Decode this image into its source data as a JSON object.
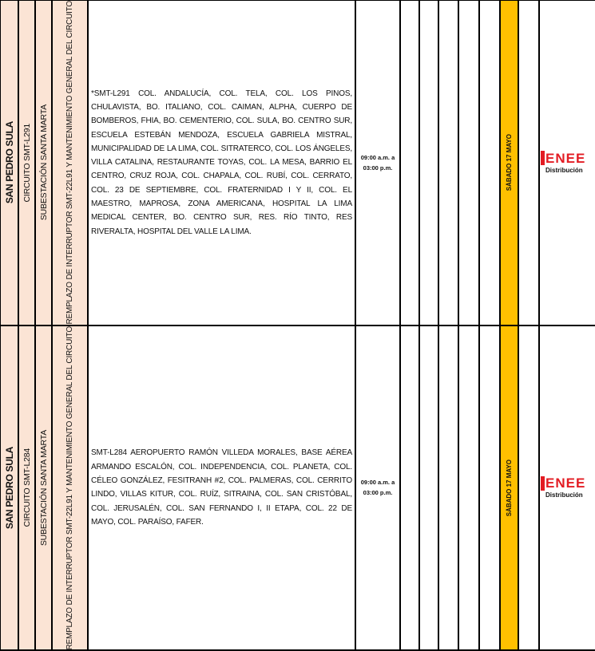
{
  "colors": {
    "location_bg": "#fbe4d5",
    "date_bg": "#ffc000",
    "logo_red": "#e31c23"
  },
  "rows": [
    {
      "city": "SAN PEDRO SULA",
      "circuit": "CIRCUITO SMT-L291",
      "substation": "SUBESTACIÓN SANTA MARTA",
      "task": "REMPLAZO DE INTERRUPTOR SMT-22L91 Y MANTENIMIENTO GENERAL DEL CIRCUITO",
      "areas": "*SMT-L291 COL. ANDALUCÍA, COL. TELA, COL. LOS PINOS, CHULAVISTA, BO. ITALIANO, COL. CAIMAN, ALPHA, CUERPO DE BOMBEROS, FHIA, BO. CEMENTERIO, COL. SULA, BO. CENTRO SUR, ESCUELA ESTEBÁN MENDOZA, ESCUELA GABRIELA MISTRAL, MUNICIPALIDAD DE LA LIMA, COL. SITRATERCO, COL. LOS ÁNGELES, VILLA CATALINA, RESTAURANTE TOYAS, COL. LA MESA, BARRIO EL CENTRO, CRUZ ROJA, COL. CHAPALA, COL. RUBÍ, COL. CERRATO, COL. 23 DE SEPTIEMBRE, COL. FRATERNIDAD I Y II, COL. EL MAESTRO, MAPROSA, ZONA AMERICANA, HOSPITAL LA LIMA MEDICAL CENTER, BO. CENTRO SUR, RES. RÍO TINTO, RES RIVERALTA, HOSPITAL DEL VALLE LA LIMA.",
      "time_start": "09:00 a.m. a",
      "time_end": "03:00 p.m.",
      "day": "SÁBADO 17 MAYO",
      "logo": {
        "brand": "ENEE",
        "sub": "Distribución"
      }
    },
    {
      "city": "SAN PEDRO SULA",
      "circuit": "CIRCUITO SMT-L284",
      "substation": "SUBESTACIÓN SANTA MARTA",
      "task": "REMPLAZO DE INTERRUPTOR SMT-22L91 Y MANTENIMIENTO GENERAL DEL CIRCUITO",
      "areas": "SMT-L284 AEROPUERTO RAMÓN VILLEDA MORALES, BASE AÉREA ARMANDO ESCALÓN, COL. INDEPENDENCIA, COL. PLANETA, COL. CÉLEO GONZÁLEZ, FESITRANH #2, COL. PALMERAS, COL. CERRITO LINDO, VILLAS KITUR, COL. RUÍZ, SITRAINA, COL. SAN CRISTÓBAL, COL. JERUSALÉN, COL. SAN FERNANDO I, II ETAPA, COL. 22 DE MAYO, COL. PARAÍSO, FAFER.",
      "time_start": "09:00 a.m. a",
      "time_end": "03:00 p.m.",
      "day": "SÁBADO 17 MAYO",
      "logo": {
        "brand": "ENEE",
        "sub": "Distribución"
      }
    }
  ]
}
